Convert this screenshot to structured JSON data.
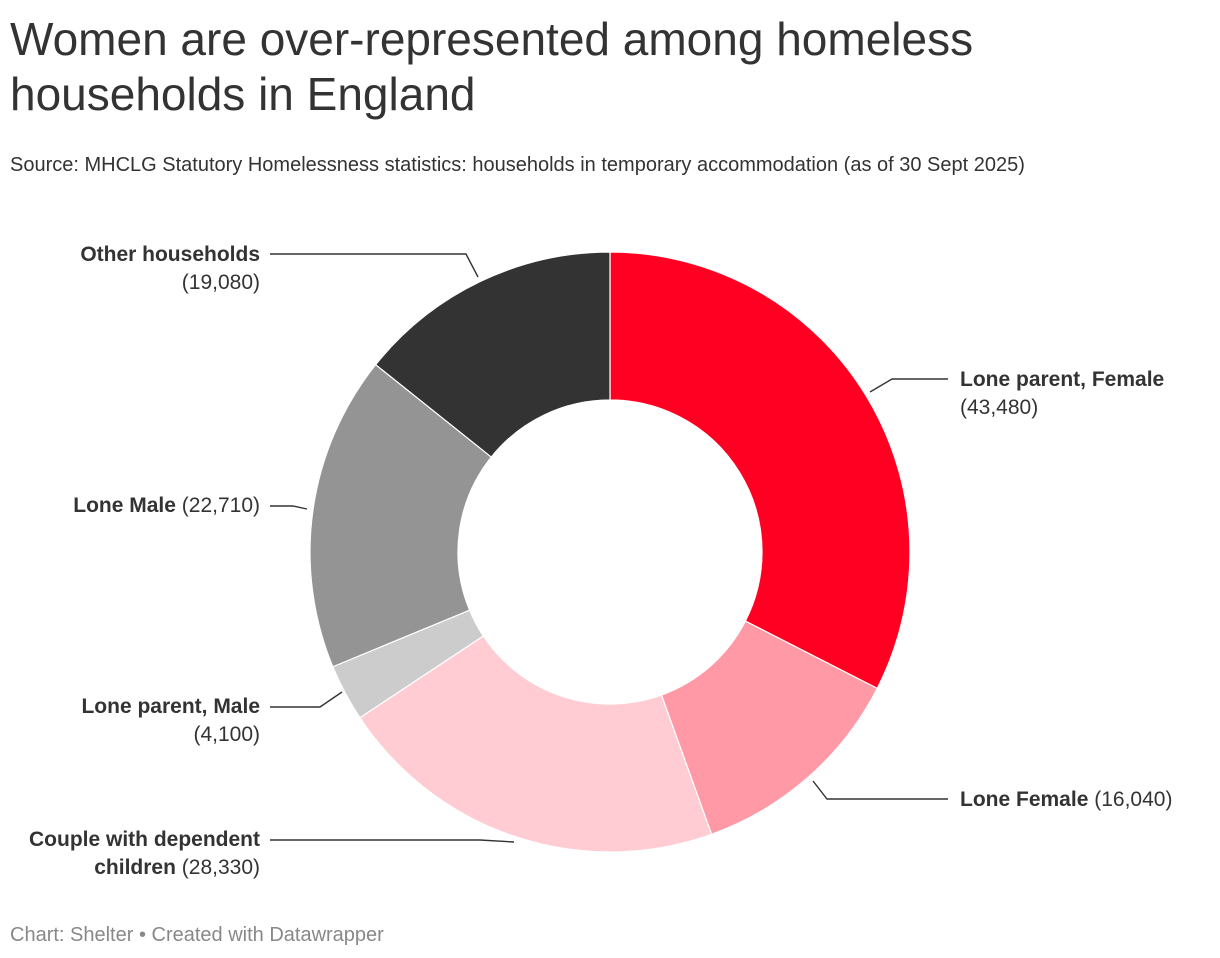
{
  "header": {
    "title": "Women are over-represented among homeless households in England",
    "subtitle": "Source: MHCLG Statutory Homelessness statistics: households in temporary accommodation (as of 30 Sept 2025)"
  },
  "footer": {
    "text": "Chart: Shelter • Created with Datawrapper"
  },
  "chart_data": {
    "type": "pie",
    "variant": "donut",
    "title": "Women are over-represented among homeless households in England",
    "subtitle": "Source: MHCLG Statutory Homelessness statistics: households in temporary accommodation (as of 30 Sept 2025)",
    "slices": [
      {
        "label": "Lone parent, Female",
        "value": 43480,
        "display": "(43,480)",
        "color": "#ff0022"
      },
      {
        "label": "Lone Female",
        "value": 16040,
        "display": "(16,040)",
        "color": "#ff99a6"
      },
      {
        "label": "Couple with dependent children",
        "value": 28330,
        "display": "(28,330)",
        "color": "#ffccd3"
      },
      {
        "label": "Lone parent, Male",
        "value": 4100,
        "display": "(4,100)",
        "color": "#cccccc"
      },
      {
        "label": "Lone Male",
        "value": 22710,
        "display": "(22,710)",
        "color": "#949494"
      },
      {
        "label": "Other households",
        "value": 19080,
        "display": "(19,080)",
        "color": "#333333"
      }
    ],
    "label_parts": {
      "couple_line1": "Couple with dependent",
      "couple_line2": "children"
    },
    "start_angle": "12 o'clock",
    "direction": "clockwise",
    "legend": "none"
  }
}
